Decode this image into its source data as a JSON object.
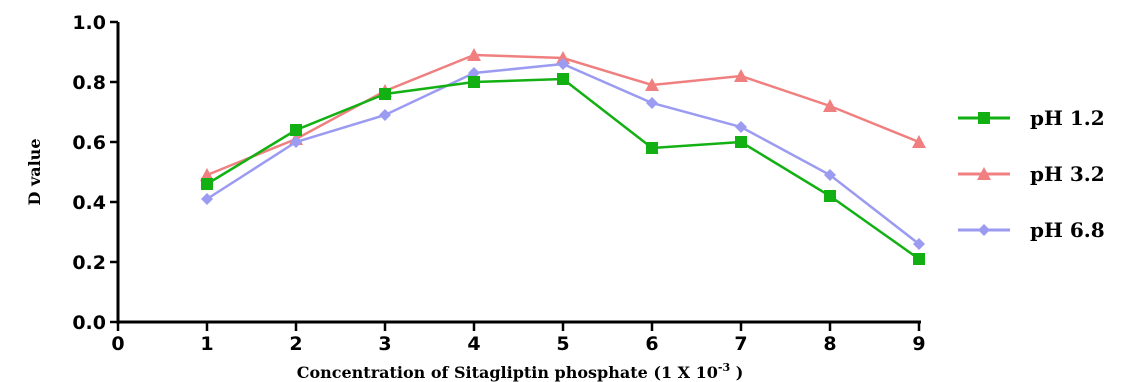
{
  "chart_data": {
    "type": "line",
    "title": "",
    "xlabel": "Concentration of Sitagliptin phosphate (1 X 10",
    "xlabel_superscript": "-3",
    "xlabel_suffix": " )",
    "ylabel": "D value",
    "xlim": [
      0,
      9
    ],
    "ylim": [
      0.0,
      1.0
    ],
    "x_ticks": [
      "0",
      "1",
      "2",
      "3",
      "4",
      "5",
      "6",
      "7",
      "8",
      "9"
    ],
    "y_ticks": [
      "0.0",
      "0.2",
      "0.4",
      "0.6",
      "0.8",
      "1.0"
    ],
    "x": [
      1,
      2,
      3,
      4,
      5,
      6,
      7,
      8,
      9
    ],
    "grid": false,
    "legend_position": "right",
    "series": [
      {
        "name": "pH 1.2",
        "color": "#12b012",
        "marker": "square",
        "values": [
          0.46,
          0.64,
          0.76,
          0.8,
          0.81,
          0.58,
          0.6,
          0.42,
          0.21
        ]
      },
      {
        "name": "pH 3.2",
        "color": "#f08080",
        "marker": "triangle",
        "values": [
          0.49,
          0.61,
          0.77,
          0.89,
          0.88,
          0.79,
          0.82,
          0.72,
          0.6
        ]
      },
      {
        "name": "pH 6.8",
        "color": "#9b9bf2",
        "marker": "diamond",
        "values": [
          0.41,
          0.6,
          0.69,
          0.83,
          0.86,
          0.73,
          0.65,
          0.49,
          0.26
        ]
      }
    ]
  }
}
